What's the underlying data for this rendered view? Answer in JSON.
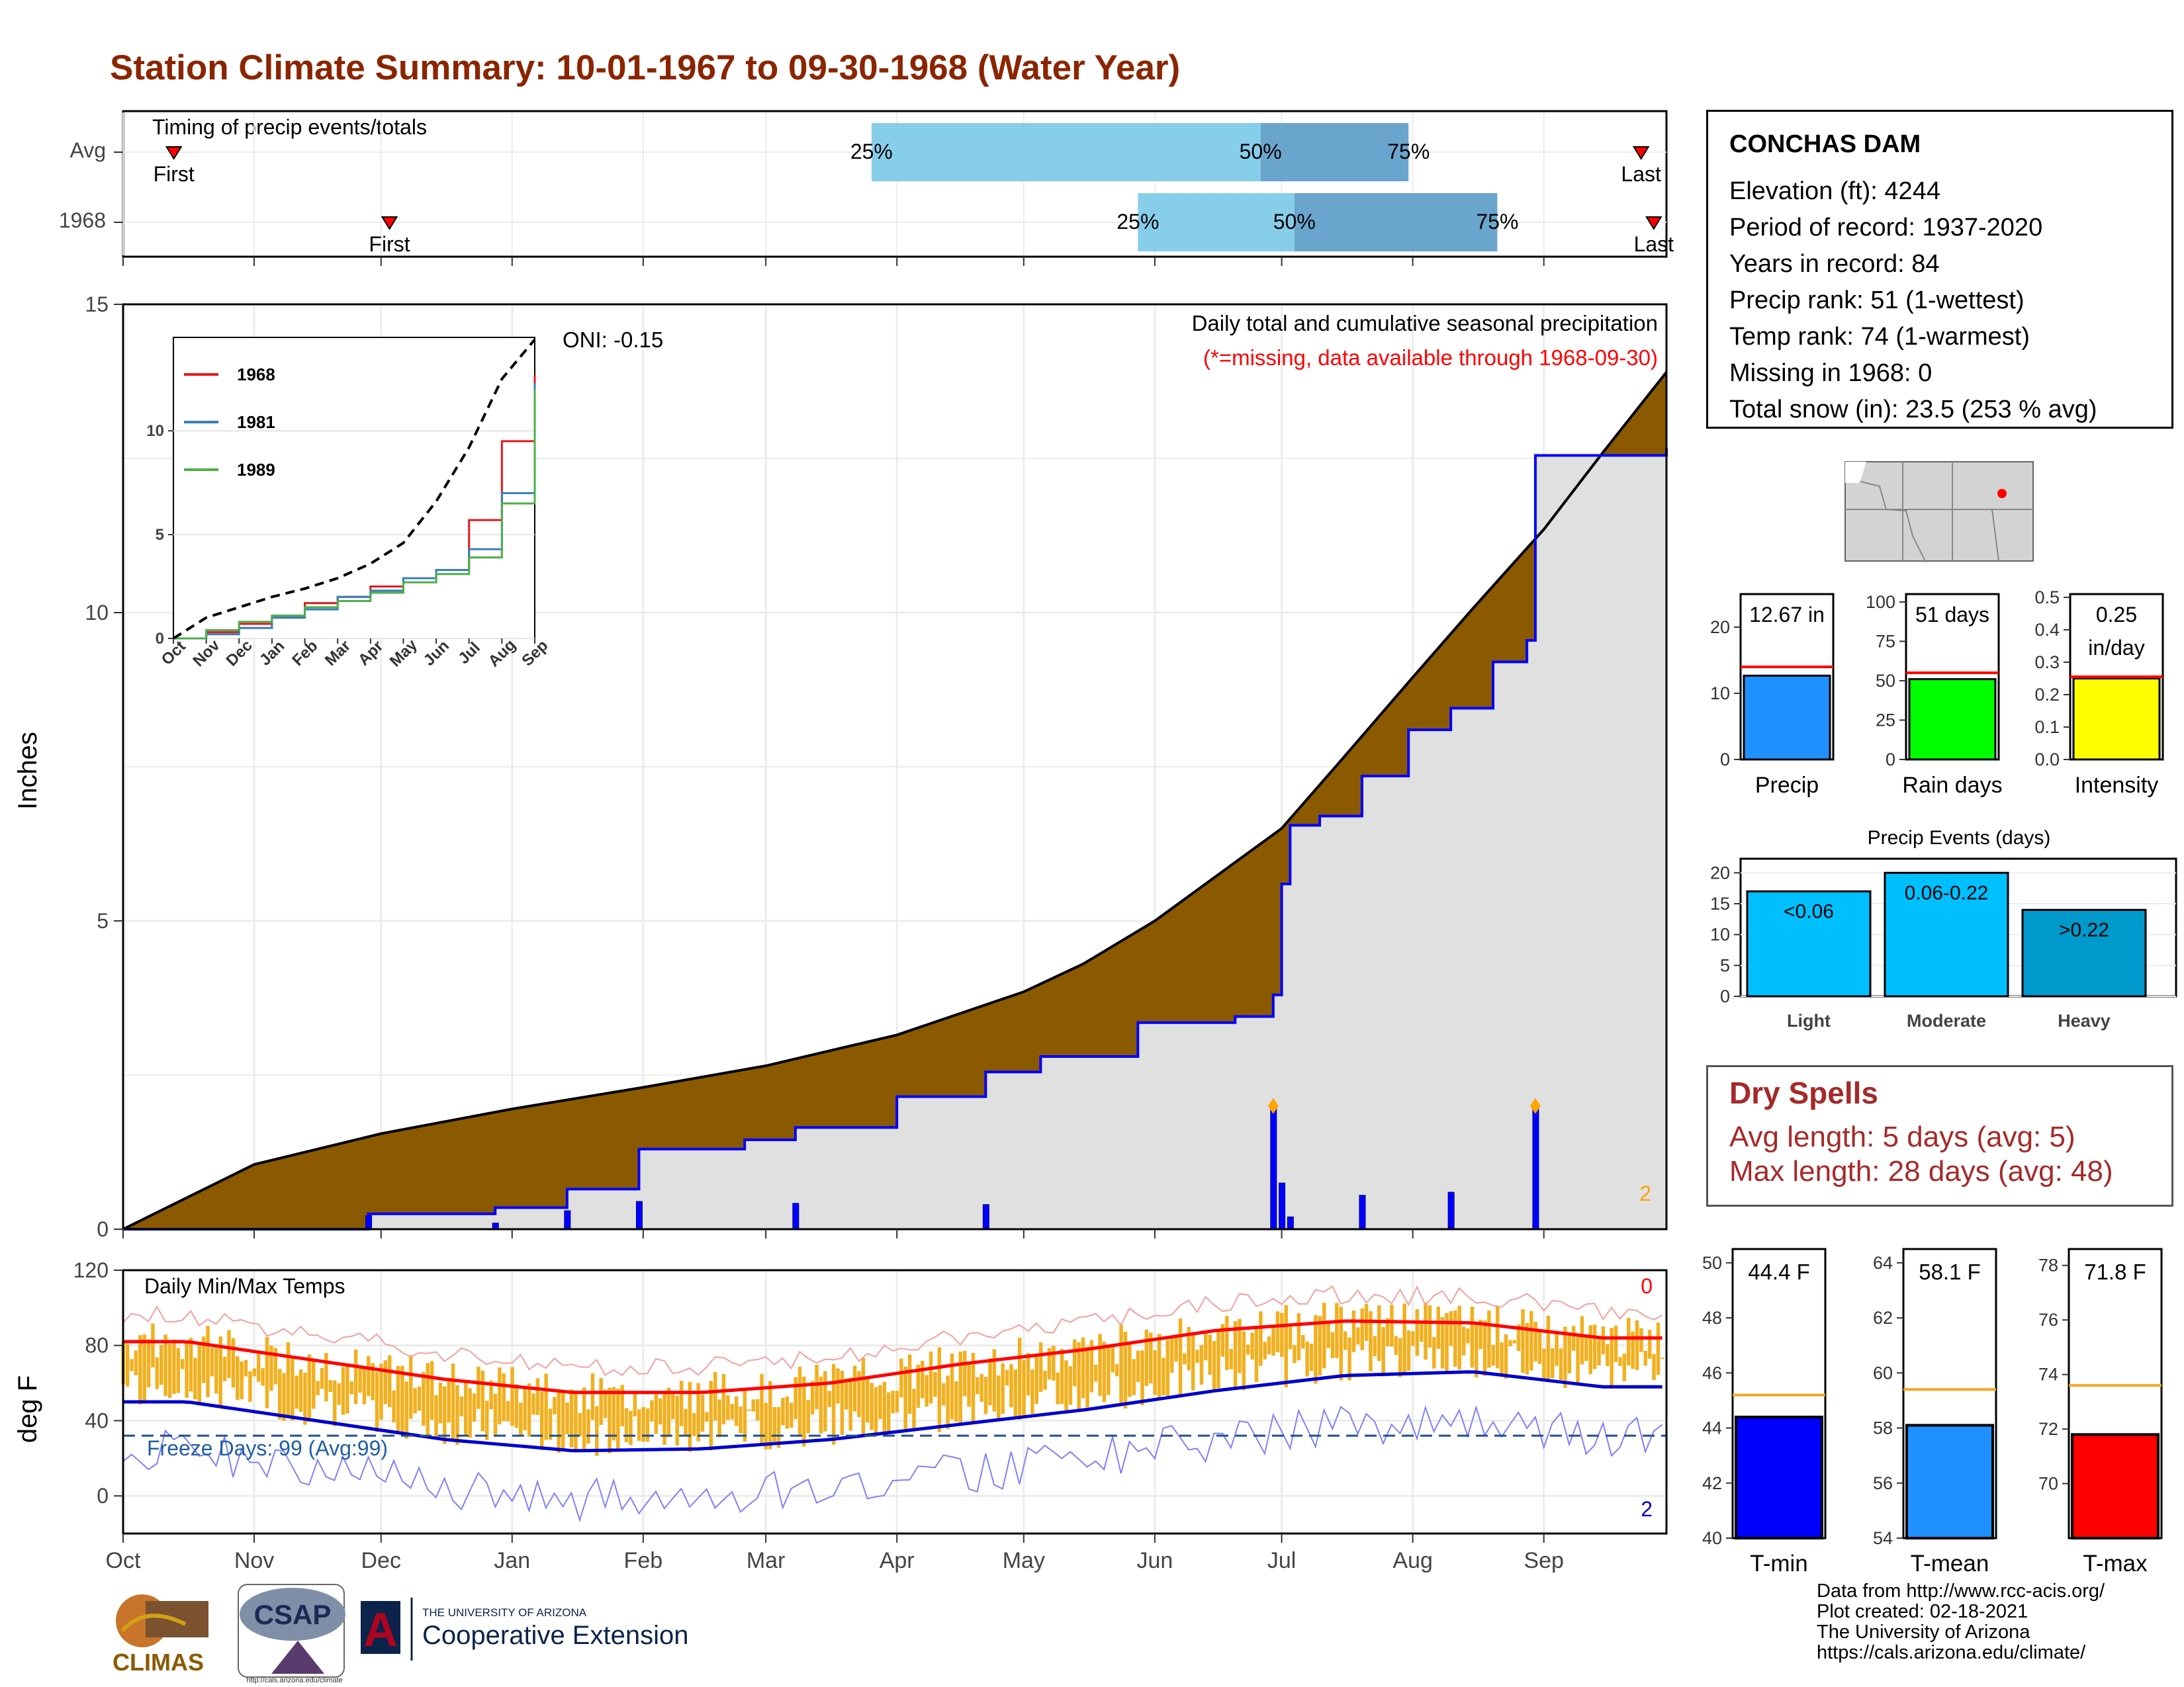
{
  "title": "Station Climate Summary: 10-01-1967 to 09-30-1968 (Water Year)",
  "timing": {
    "label": "Timing of precip events/totals",
    "rows": [
      {
        "name": "Avg",
        "first_label": "First",
        "last_label": "Last",
        "p25": "25%",
        "p50": "50%",
        "p75": "75%",
        "first_date": "1967-10-13",
        "last_date": "1968-09-24",
        "p25_date": "1968-03-26",
        "p50_date": "1968-06-26",
        "p75_date": "1968-07-31"
      },
      {
        "name": "1968",
        "first_label": "First",
        "last_label": "Last",
        "p25": "25%",
        "p50": "50%",
        "p75": "75%",
        "first_date": "1967-12-03",
        "last_date": "1968-09-27",
        "p25_date": "1968-05-28",
        "p50_date": "1968-07-04",
        "p75_date": "1968-08-21"
      }
    ]
  },
  "precip_panel": {
    "ylabel": "Inches",
    "note1": "Daily total and cumulative seasonal precipitation",
    "note2": "(*=missing, data available through 1968-09-30)",
    "corner_count": "2",
    "oni": "ONI: -0.15",
    "y_ticks": [
      "0",
      "5",
      "10",
      "15"
    ],
    "month_ticks": [
      "Oct",
      "Nov",
      "Dec",
      "Jan",
      "Feb",
      "Mar",
      "Apr",
      "May",
      "Jun",
      "Jul",
      "Aug",
      "Sep"
    ]
  },
  "inset": {
    "legend": [
      "1968",
      "1981",
      "1989"
    ],
    "y_ticks": [
      "0",
      "5",
      "10"
    ],
    "x_ticks": [
      "Oct",
      "Nov",
      "Dec",
      "Jan",
      "Feb",
      "Mar",
      "Apr",
      "May",
      "Jun",
      "Jul",
      "Aug",
      "Sep"
    ]
  },
  "temp_panel": {
    "ylabel": "deg F",
    "label": "Daily Min/Max Temps",
    "freeze": "Freeze Days: 99 (Avg:99)",
    "count_top": "0",
    "count_bottom": "2",
    "y_ticks": [
      "0",
      "40",
      "80",
      "120"
    ],
    "x_ticks": [
      "Oct",
      "Nov",
      "Dec",
      "Jan",
      "Feb",
      "Mar",
      "Apr",
      "May",
      "Jun",
      "Jul",
      "Aug",
      "Sep"
    ]
  },
  "station": {
    "name": "CONCHAS DAM",
    "lines": [
      "Elevation (ft): 4244",
      "Period of record: 1937-2020",
      "Years in record: 84",
      "Precip rank: 51 (1-wettest)",
      "Temp rank: 74 (1-warmest)",
      "Missing in 1968: 0",
      "Total snow (in): 23.5 (253 % avg)"
    ]
  },
  "dry_spells": {
    "title": "Dry Spells",
    "avg": "Avg length: 5 days (avg: 5)",
    "max": "Max length: 28 days (avg: 48)"
  },
  "summary_bars": [
    {
      "label": "Precip",
      "value_text": "12.67 in",
      "value": 12.67,
      "avg": 14.0,
      "ymax": 25,
      "ticks": [
        "0",
        "10",
        "20"
      ],
      "color": "#1e90ff"
    },
    {
      "label": "Rain days",
      "value_text": "51 days",
      "value": 51,
      "avg": 55,
      "ymax": 105,
      "ticks": [
        "0",
        "25",
        "50",
        "75",
        "100"
      ],
      "color": "#00ff00"
    },
    {
      "label": "Intensity",
      "value_text1": "0.25",
      "value_text2": "in/day",
      "value": 0.25,
      "avg": 0.255,
      "ymax": 0.51,
      "ticks": [
        "0.0",
        "0.1",
        "0.2",
        "0.3",
        "0.4",
        "0.5"
      ],
      "color": "#ffff00"
    }
  ],
  "events": {
    "title": "Precip Events (days)",
    "ticks": [
      "0",
      "5",
      "10",
      "15",
      "20"
    ],
    "bars": [
      {
        "cat": "Light",
        "range": "<0.06",
        "value": 17,
        "color": "#00bfff"
      },
      {
        "cat": "Moderate",
        "range": "0.06-0.22",
        "value": 20,
        "color": "#00bfff"
      },
      {
        "cat": "Heavy",
        "range": ">0.22",
        "value": 14,
        "color": "#0099cc"
      }
    ]
  },
  "temp_bars": [
    {
      "label": "T-min",
      "value_text": "44.4 F",
      "value": 44.4,
      "avg": 45.2,
      "ymin": 40,
      "ymax": 50.5,
      "ticks": [
        "40",
        "42",
        "44",
        "46",
        "48",
        "50"
      ],
      "color": "#0000ff"
    },
    {
      "label": "T-mean",
      "value_text": "58.1 F",
      "value": 58.1,
      "avg": 59.4,
      "ymin": 54,
      "ymax": 64.5,
      "ticks": [
        "54",
        "56",
        "58",
        "60",
        "62",
        "64"
      ],
      "color": "#1e90ff"
    },
    {
      "label": "T-max",
      "value_text": "71.8 F",
      "value": 71.8,
      "avg": 73.6,
      "ymin": 68,
      "ymax": 78.6,
      "ticks": [
        "70",
        "72",
        "74",
        "76",
        "78"
      ],
      "color": "#ff0000"
    }
  ],
  "footer": [
    "Data from http://www.rcc-acis.org/",
    "Plot created: 02-18-2021",
    "The University of Arizona",
    "https://cals.arizona.edu/climate/"
  ],
  "logos": {
    "climas": "CLIMAS",
    "csap": "CSAP",
    "csap_url": "http://cals.arizona.edu/climate",
    "ua_line1": "THE UNIVERSITY OF ARIZONA",
    "ua_line2": "Cooperative Extension"
  },
  "chart_data": [
    {
      "type": "area",
      "title": "Daily total and cumulative seasonal precipitation",
      "ylabel": "Inches",
      "ylim": [
        0,
        15
      ],
      "x_range": [
        "1967-10-01",
        "1968-09-30"
      ],
      "series": [
        {
          "name": "1968",
          "x": [
            "1967-10-01",
            "1967-11-28",
            "1967-12-28",
            "1968-01-14",
            "1968-01-31",
            "1968-02-25",
            "1968-03-08",
            "1968-04-01",
            "1968-04-22",
            "1968-05-05",
            "1968-05-28",
            "1968-06-20",
            "1968-06-29",
            "1968-07-01",
            "1968-07-03",
            "1968-07-10",
            "1968-07-20",
            "1968-07-31",
            "1968-08-10",
            "1968-08-20",
            "1968-08-28",
            "1968-08-30",
            "1968-09-30"
          ],
          "values": [
            0.0,
            0.25,
            0.35,
            0.65,
            1.3,
            1.45,
            1.65,
            2.15,
            2.55,
            2.8,
            3.35,
            3.45,
            3.8,
            5.6,
            6.55,
            6.7,
            7.35,
            8.1,
            8.45,
            9.2,
            9.55,
            12.55,
            12.67
          ]
        },
        {
          "name": "Avg",
          "x": [
            "1967-10-01",
            "1967-11-01",
            "1967-12-01",
            "1968-01-01",
            "1968-02-01",
            "1968-03-01",
            "1968-04-01",
            "1968-05-01",
            "1968-05-15",
            "1968-06-01",
            "1968-06-15",
            "1968-07-01",
            "1968-07-15",
            "1968-08-01",
            "1968-08-15",
            "1968-09-01",
            "1968-09-15",
            "1968-09-30"
          ],
          "values": [
            0.0,
            1.05,
            1.55,
            1.95,
            2.3,
            2.65,
            3.15,
            3.85,
            4.3,
            5.0,
            5.7,
            6.5,
            7.6,
            8.95,
            10.05,
            11.35,
            12.6,
            13.9
          ]
        }
      ],
      "daily_bars": [
        {
          "x": "1967-11-28",
          "value": 0.22
        },
        {
          "x": "1967-12-28",
          "value": 0.1
        },
        {
          "x": "1968-01-14",
          "value": 0.3
        },
        {
          "x": "1968-01-31",
          "value": 0.45
        },
        {
          "x": "1968-03-08",
          "value": 0.42
        },
        {
          "x": "1968-04-22",
          "value": 0.4
        },
        {
          "x": "1968-06-29",
          "value": 2.0
        },
        {
          "x": "1968-07-01",
          "value": 0.75
        },
        {
          "x": "1968-07-03",
          "value": 0.2
        },
        {
          "x": "1968-07-20",
          "value": 0.55
        },
        {
          "x": "1968-08-10",
          "value": 0.6
        },
        {
          "x": "1968-08-30",
          "value": 2.0
        }
      ]
    },
    {
      "type": "line",
      "title": "",
      "ylim": [
        0,
        14.5
      ],
      "x_range": [
        "1967-10-01",
        "1968-09-30"
      ],
      "series": [
        {
          "name": "1968",
          "values": [
            0.0,
            0.3,
            0.7,
            1.0,
            1.7,
            2.0,
            2.5,
            2.9,
            3.3,
            5.7,
            9.5,
            12.7
          ]
        },
        {
          "name": "1981",
          "values": [
            0.0,
            0.2,
            0.5,
            1.0,
            1.4,
            2.0,
            2.3,
            2.9,
            3.3,
            4.3,
            7.0,
            12.3
          ]
        },
        {
          "name": "1989",
          "values": [
            0.0,
            0.4,
            0.8,
            1.1,
            1.5,
            1.8,
            2.2,
            2.7,
            3.1,
            3.9,
            6.5,
            12.0
          ]
        },
        {
          "name": "Avg",
          "values": [
            0.0,
            1.0,
            1.5,
            2.0,
            2.4,
            2.9,
            3.6,
            4.6,
            6.6,
            9.2,
            12.5,
            14.4
          ]
        }
      ]
    },
    {
      "type": "bar",
      "title": "Daily Min/Max Temps",
      "ylabel": "deg F",
      "ylim": [
        -20,
        120
      ],
      "x_range": [
        "1967-10-01",
        "1968-09-30"
      ],
      "series": [
        {
          "name": "avg max",
          "values": [
            82,
            72,
            62,
            55,
            55,
            60,
            70,
            78,
            88,
            93,
            92,
            84
          ]
        },
        {
          "name": "avg min",
          "values": [
            50,
            40,
            30,
            24,
            25,
            30,
            38,
            46,
            56,
            64,
            66,
            58
          ]
        }
      ],
      "freeze_line": 32
    },
    {
      "type": "bar",
      "categories": [
        "Precip",
        "Rain days",
        "Intensity"
      ],
      "values": [
        12.67,
        51,
        0.25
      ]
    },
    {
      "type": "bar",
      "title": "Precip Events (days)",
      "categories": [
        "Light",
        "Moderate",
        "Heavy"
      ],
      "values": [
        17,
        20,
        14
      ]
    },
    {
      "type": "bar",
      "categories": [
        "T-min",
        "T-mean",
        "T-max"
      ],
      "values": [
        44.4,
        58.1,
        71.8
      ]
    }
  ]
}
